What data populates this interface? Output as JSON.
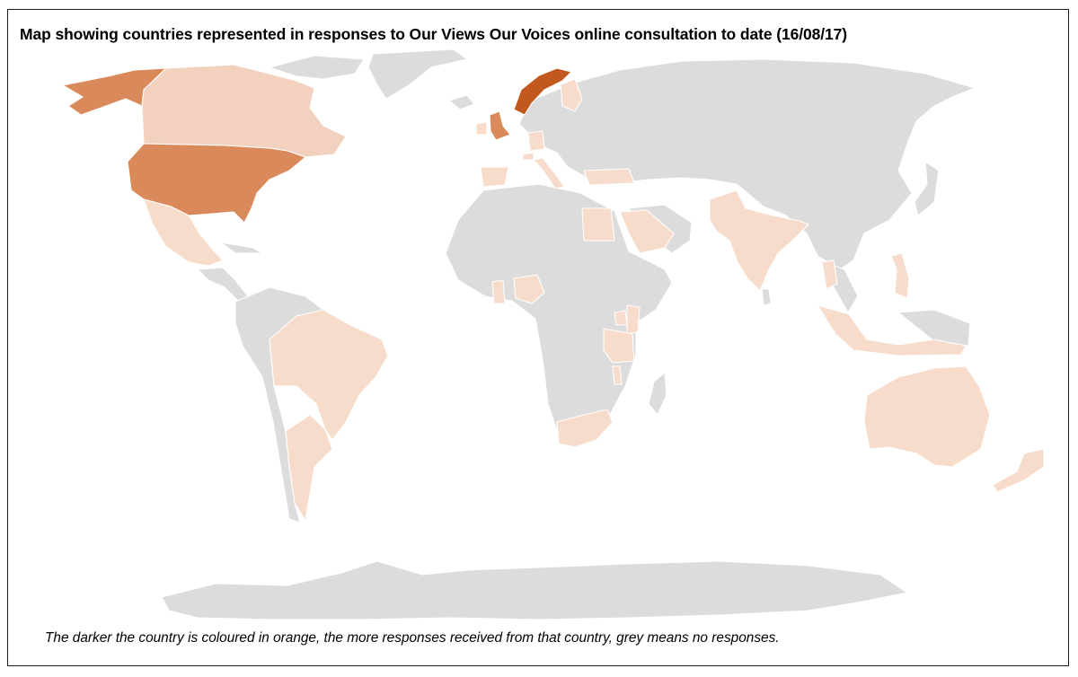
{
  "title": "Map showing countries represented in responses to Our Views Our Voices online consultation to date (16/08/17)",
  "caption": "The darker the country is coloured in orange, the more responses received from that country, grey means no responses.",
  "colors": {
    "no_response": "#dcdcdc",
    "level_1": "#f8dccb",
    "level_2": "#f2d2bf",
    "level_3": "#d9895a",
    "level_4": "#c2581d"
  },
  "countries": [
    {
      "name": "Alaska",
      "level": 3
    },
    {
      "name": "Canada",
      "level": 2
    },
    {
      "name": "United States",
      "level": 3
    },
    {
      "name": "Mexico",
      "level": 1
    },
    {
      "name": "Norway",
      "level": 4
    },
    {
      "name": "United Kingdom",
      "level": 3
    },
    {
      "name": "Ireland",
      "level": 1
    },
    {
      "name": "Finland",
      "level": 1
    },
    {
      "name": "Germany",
      "level": 1
    },
    {
      "name": "Switzerland",
      "level": 1
    },
    {
      "name": "Italy",
      "level": 1
    },
    {
      "name": "Spain",
      "level": 1
    },
    {
      "name": "Turkey",
      "level": 1
    },
    {
      "name": "Egypt",
      "level": 1
    },
    {
      "name": "Saudi Arabia",
      "level": 1
    },
    {
      "name": "India",
      "level": 1
    },
    {
      "name": "Ghana",
      "level": 1
    },
    {
      "name": "Nigeria",
      "level": 1
    },
    {
      "name": "Uganda",
      "level": 1
    },
    {
      "name": "Kenya",
      "level": 1
    },
    {
      "name": "Tanzania",
      "level": 1
    },
    {
      "name": "Malawi",
      "level": 1
    },
    {
      "name": "South Africa",
      "level": 1
    },
    {
      "name": "Brazil",
      "level": 1
    },
    {
      "name": "Argentina",
      "level": 1
    },
    {
      "name": "Thailand",
      "level": 1
    },
    {
      "name": "Philippines",
      "level": 1
    },
    {
      "name": "Indonesia",
      "level": 1
    },
    {
      "name": "Australia",
      "level": 1
    },
    {
      "name": "New Zealand",
      "level": 1
    }
  ]
}
